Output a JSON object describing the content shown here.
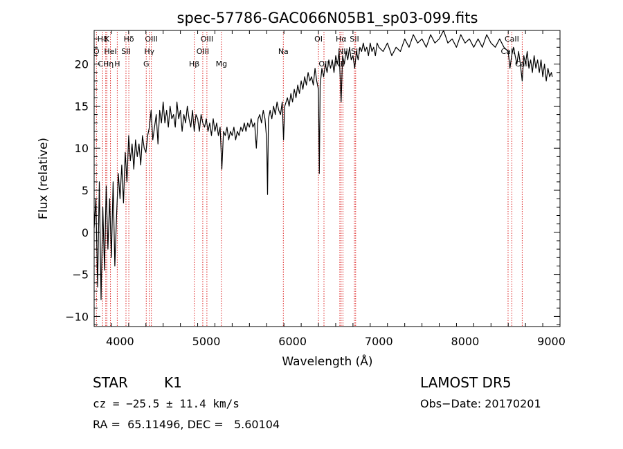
{
  "chart_data": {
    "type": "line",
    "title": "spec-57786-GAC066N05B1_sp03-099.fits",
    "xlabel": "Wavelength (Å)",
    "ylabel": "Flux (relative)",
    "xlim": [
      3700,
      9100
    ],
    "ylim": [
      -11.2,
      24
    ],
    "xticks": [
      4000,
      5000,
      6000,
      7000,
      8000,
      9000
    ],
    "yticks": [
      -10,
      -5,
      0,
      5,
      10,
      15,
      20
    ],
    "grid": false,
    "series": [
      {
        "color": "#000000",
        "points": [
          [
            3700,
            0.5
          ],
          [
            3720,
            4.0
          ],
          [
            3740,
            -6.5
          ],
          [
            3760,
            6.0
          ],
          [
            3780,
            -8.0
          ],
          [
            3800,
            3.0
          ],
          [
            3820,
            -4.5
          ],
          [
            3840,
            5.5
          ],
          [
            3860,
            -2.0
          ],
          [
            3880,
            4.0
          ],
          [
            3900,
            -3.0
          ],
          [
            3920,
            6.0
          ],
          [
            3940,
            -4.0
          ],
          [
            3960,
            2.0
          ],
          [
            3980,
            7.0
          ],
          [
            4000,
            4.0
          ],
          [
            4020,
            8.0
          ],
          [
            4040,
            3.5
          ],
          [
            4060,
            9.5
          ],
          [
            4080,
            6.0
          ],
          [
            4100,
            11.5
          ],
          [
            4120,
            8.5
          ],
          [
            4140,
            10.5
          ],
          [
            4160,
            7.5
          ],
          [
            4180,
            11.0
          ],
          [
            4200,
            9.0
          ],
          [
            4220,
            10.5
          ],
          [
            4240,
            8.0
          ],
          [
            4260,
            11.5
          ],
          [
            4280,
            10.0
          ],
          [
            4300,
            9.5
          ],
          [
            4320,
            11.5
          ],
          [
            4340,
            12.5
          ],
          [
            4360,
            14.5
          ],
          [
            4380,
            11.0
          ],
          [
            4400,
            12.5
          ],
          [
            4420,
            14.0
          ],
          [
            4440,
            10.5
          ],
          [
            4460,
            14.5
          ],
          [
            4480,
            13.0
          ],
          [
            4500,
            15.5
          ],
          [
            4520,
            13.0
          ],
          [
            4540,
            14.5
          ],
          [
            4560,
            12.5
          ],
          [
            4580,
            15.0
          ],
          [
            4600,
            13.5
          ],
          [
            4620,
            14.0
          ],
          [
            4640,
            12.5
          ],
          [
            4660,
            15.5
          ],
          [
            4680,
            13.5
          ],
          [
            4700,
            14.5
          ],
          [
            4720,
            12.0
          ],
          [
            4740,
            14.0
          ],
          [
            4760,
            13.0
          ],
          [
            4780,
            15.0
          ],
          [
            4800,
            13.5
          ],
          [
            4820,
            12.5
          ],
          [
            4840,
            14.5
          ],
          [
            4860,
            12.0
          ],
          [
            4880,
            14.0
          ],
          [
            4900,
            13.5
          ],
          [
            4920,
            12.0
          ],
          [
            4940,
            14.0
          ],
          [
            4960,
            13.0
          ],
          [
            4980,
            12.5
          ],
          [
            5000,
            13.5
          ],
          [
            5020,
            12.0
          ],
          [
            5040,
            13.0
          ],
          [
            5060,
            11.5
          ],
          [
            5080,
            13.5
          ],
          [
            5100,
            12.0
          ],
          [
            5120,
            13.0
          ],
          [
            5140,
            11.5
          ],
          [
            5160,
            12.5
          ],
          [
            5180,
            7.5
          ],
          [
            5200,
            12.0
          ],
          [
            5220,
            11.5
          ],
          [
            5240,
            12.5
          ],
          [
            5260,
            11.0
          ],
          [
            5280,
            12.0
          ],
          [
            5300,
            11.5
          ],
          [
            5320,
            12.5
          ],
          [
            5340,
            11.0
          ],
          [
            5360,
            12.0
          ],
          [
            5380,
            11.5
          ],
          [
            5400,
            12.5
          ],
          [
            5420,
            12.0
          ],
          [
            5440,
            13.0
          ],
          [
            5460,
            12.0
          ],
          [
            5480,
            13.0
          ],
          [
            5500,
            12.5
          ],
          [
            5520,
            13.5
          ],
          [
            5540,
            12.5
          ],
          [
            5560,
            13.0
          ],
          [
            5580,
            10.0
          ],
          [
            5600,
            13.5
          ],
          [
            5620,
            14.0
          ],
          [
            5640,
            13.0
          ],
          [
            5660,
            14.5
          ],
          [
            5680,
            13.5
          ],
          [
            5700,
            11.0
          ],
          [
            5710,
            4.5
          ],
          [
            5720,
            13.5
          ],
          [
            5740,
            14.5
          ],
          [
            5760,
            13.5
          ],
          [
            5780,
            15.0
          ],
          [
            5800,
            14.0
          ],
          [
            5820,
            15.5
          ],
          [
            5840,
            14.5
          ],
          [
            5860,
            14.0
          ],
          [
            5880,
            15.5
          ],
          [
            5895,
            11.0
          ],
          [
            5910,
            15.0
          ],
          [
            5940,
            16.0
          ],
          [
            5960,
            15.0
          ],
          [
            5980,
            16.5
          ],
          [
            6000,
            15.5
          ],
          [
            6020,
            17.0
          ],
          [
            6040,
            16.0
          ],
          [
            6060,
            17.5
          ],
          [
            6080,
            16.5
          ],
          [
            6100,
            18.0
          ],
          [
            6120,
            17.0
          ],
          [
            6140,
            18.5
          ],
          [
            6160,
            17.5
          ],
          [
            6180,
            19.0
          ],
          [
            6200,
            18.0
          ],
          [
            6220,
            18.5
          ],
          [
            6240,
            17.5
          ],
          [
            6260,
            19.5
          ],
          [
            6280,
            18.0
          ],
          [
            6300,
            17.0
          ],
          [
            6310,
            7.0
          ],
          [
            6320,
            17.5
          ],
          [
            6340,
            19.5
          ],
          [
            6360,
            18.5
          ],
          [
            6380,
            20.0
          ],
          [
            6400,
            19.0
          ],
          [
            6420,
            20.5
          ],
          [
            6440,
            19.5
          ],
          [
            6460,
            20.5
          ],
          [
            6480,
            19.0
          ],
          [
            6500,
            21.0
          ],
          [
            6520,
            20.0
          ],
          [
            6540,
            21.5
          ],
          [
            6563,
            15.5
          ],
          [
            6580,
            21.0
          ],
          [
            6600,
            20.0
          ],
          [
            6620,
            21.5
          ],
          [
            6640,
            20.5
          ],
          [
            6660,
            22.0
          ],
          [
            6680,
            20.5
          ],
          [
            6700,
            21.0
          ],
          [
            6720,
            19.5
          ],
          [
            6740,
            21.5
          ],
          [
            6760,
            20.5
          ],
          [
            6780,
            22.0
          ],
          [
            6800,
            21.5
          ],
          [
            6820,
            22.5
          ],
          [
            6840,
            21.5
          ],
          [
            6860,
            22.0
          ],
          [
            6880,
            21.0
          ],
          [
            6900,
            22.5
          ],
          [
            6920,
            21.5
          ],
          [
            6940,
            22.0
          ],
          [
            6960,
            21.0
          ],
          [
            6980,
            22.5
          ],
          [
            7000,
            22.0
          ],
          [
            7050,
            21.5
          ],
          [
            7100,
            22.5
          ],
          [
            7150,
            21.0
          ],
          [
            7200,
            22.0
          ],
          [
            7250,
            21.5
          ],
          [
            7300,
            23.0
          ],
          [
            7350,
            22.0
          ],
          [
            7400,
            23.5
          ],
          [
            7450,
            22.5
          ],
          [
            7500,
            23.0
          ],
          [
            7550,
            22.0
          ],
          [
            7600,
            23.5
          ],
          [
            7650,
            22.5
          ],
          [
            7700,
            23.0
          ],
          [
            7750,
            24.0
          ],
          [
            7800,
            22.5
          ],
          [
            7850,
            23.0
          ],
          [
            7900,
            22.0
          ],
          [
            7950,
            23.5
          ],
          [
            8000,
            22.5
          ],
          [
            8050,
            23.0
          ],
          [
            8100,
            22.0
          ],
          [
            8150,
            23.0
          ],
          [
            8200,
            22.0
          ],
          [
            8250,
            23.5
          ],
          [
            8300,
            22.5
          ],
          [
            8350,
            22.0
          ],
          [
            8400,
            23.0
          ],
          [
            8450,
            22.0
          ],
          [
            8500,
            21.5
          ],
          [
            8520,
            19.5
          ],
          [
            8540,
            21.0
          ],
          [
            8560,
            22.0
          ],
          [
            8580,
            21.0
          ],
          [
            8600,
            20.0
          ],
          [
            8620,
            21.5
          ],
          [
            8640,
            20.0
          ],
          [
            8662,
            18.0
          ],
          [
            8680,
            21.0
          ],
          [
            8700,
            20.0
          ],
          [
            8720,
            21.5
          ],
          [
            8740,
            19.5
          ],
          [
            8760,
            20.5
          ],
          [
            8780,
            19.0
          ],
          [
            8800,
            21.0
          ],
          [
            8820,
            19.5
          ],
          [
            8840,
            20.5
          ],
          [
            8860,
            19.0
          ],
          [
            8880,
            20.5
          ],
          [
            8900,
            18.5
          ],
          [
            8920,
            20.0
          ],
          [
            8940,
            18.0
          ],
          [
            8960,
            19.5
          ],
          [
            8980,
            18.5
          ],
          [
            9000,
            19.0
          ],
          [
            9010,
            18.5
          ]
        ]
      }
    ],
    "spectral_lines": [
      {
        "label": "Hδ",
        "x": 3798,
        "row": 0
      },
      {
        "label": "K",
        "x": 3848,
        "row": 0
      },
      {
        "label": "Hδ",
        "x": 4102,
        "row": 0
      },
      {
        "label": "OIII",
        "x": 4363,
        "row": 0
      },
      {
        "label": "OIII",
        "x": 5007,
        "row": 0
      },
      {
        "label": "OI",
        "x": 6300,
        "row": 0
      },
      {
        "label": "Hα",
        "x": 6563,
        "row": 0
      },
      {
        "label": "SII",
        "x": 6717,
        "row": 0
      },
      {
        "label": "CaII",
        "x": 8542,
        "row": 0
      },
      {
        "label": "O",
        "x": 3727,
        "row": 1
      },
      {
        "label": "HeI",
        "x": 3889,
        "row": 1
      },
      {
        "label": "SII",
        "x": 4069,
        "row": 1
      },
      {
        "label": "Hγ",
        "x": 4340,
        "row": 1
      },
      {
        "label": "OIII",
        "x": 4959,
        "row": 1
      },
      {
        "label": "Na",
        "x": 5893,
        "row": 1
      },
      {
        "label": "NII",
        "x": 6584,
        "row": 1
      },
      {
        "label": "SII",
        "x": 6731,
        "row": 1
      },
      {
        "label": "CaII",
        "x": 8498,
        "row": 1
      },
      {
        "label": "CHη",
        "x": 3835,
        "row": 2
      },
      {
        "label": "H",
        "x": 3968,
        "row": 2
      },
      {
        "label": "G",
        "x": 4304,
        "row": 2
      },
      {
        "label": "Hβ",
        "x": 4861,
        "row": 2
      },
      {
        "label": "Mg",
        "x": 5175,
        "row": 2
      },
      {
        "label": "OII",
        "x": 6364,
        "row": 2
      },
      {
        "label": "NII",
        "x": 6548,
        "row": 2
      },
      {
        "label": "CaII",
        "x": 8662,
        "row": 2
      }
    ]
  },
  "info": {
    "object_class": "STAR",
    "subclass": "K1",
    "survey": "LAMOST DR5",
    "cz": "cz = −25.5 ± 11.4 km/s",
    "obs_date": "Obs−Date: 20170201",
    "coords": "RA =  65.11496, DEC =   5.60104"
  }
}
